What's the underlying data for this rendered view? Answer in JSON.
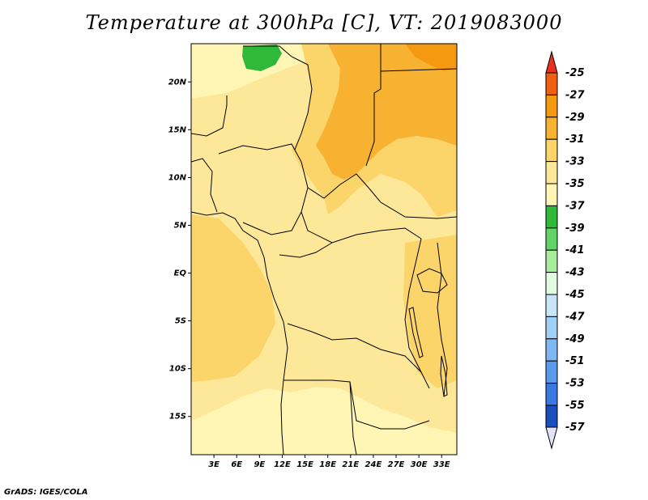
{
  "title": "Temperature at 300hPa [C], VT: 2019083000",
  "credit": "GrADS: IGES/COLA",
  "chart_data": {
    "type": "heatmap",
    "lon_labels": [
      "3E",
      "6E",
      "9E",
      "12E",
      "15E",
      "18E",
      "21E",
      "24E",
      "27E",
      "30E",
      "33E"
    ],
    "lat_labels": [
      "20N",
      "15N",
      "10N",
      "5N",
      "EQ",
      "5S",
      "10S",
      "15S"
    ],
    "xlim": [
      0,
      35
    ],
    "ylim": [
      -19,
      24
    ],
    "colorbar": {
      "levels": [
        -25,
        -27,
        -29,
        -31,
        -33,
        -35,
        -37,
        -39,
        -41,
        -43,
        -45,
        -47,
        -49,
        -51,
        -53,
        -55,
        -57
      ],
      "colors": {
        "top_arrow": "#e8321e",
        "bottom_arrow": "#e2e2f8",
        "bands": [
          "#f06010",
          "#f59a10",
          "#f8b232",
          "#fbd46a",
          "#fde89a",
          "#fff5b4",
          "#2fb83a",
          "#62d465",
          "#a8ec9e",
          "#e0fbe0",
          "#c6e6f8",
          "#a0d0f6",
          "#7eb8f2",
          "#5a9aec",
          "#3a78e2",
          "#1a4fbd",
          "#0f1c78"
        ]
      }
    },
    "field_colors": {
      "t_m35": "#fff5b4",
      "t_m33": "#fde89a",
      "t_m31": "#fbd46a",
      "t_m29": "#f8b232",
      "t_m27": "#f59a10",
      "t_m37": "#2fb83a"
    }
  }
}
